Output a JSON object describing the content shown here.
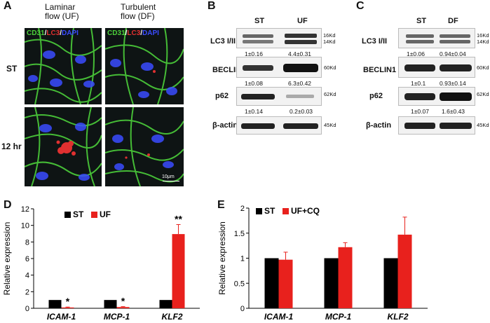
{
  "panelA": {
    "label": "A",
    "col1": "Laminar\nflow (UF)",
    "col2": "Turbulent\nflow (DF)",
    "row1": "ST",
    "row2": "12 hr",
    "stain": {
      "cd31": "CD31",
      "lc3": "LC3",
      "dapi": "DAPI",
      "sep": "/"
    },
    "scalebar": "10μm",
    "colors": {
      "cd31": "#4ccf3a",
      "lc3": "#e03030",
      "dapi": "#3a4cff"
    }
  },
  "panelB": {
    "label": "B",
    "lanes": [
      "ST",
      "UF"
    ],
    "rows": [
      {
        "name": "LC3 I/II",
        "kd": [
          "16Kd",
          "14Kd"
        ],
        "quant": [
          "1±0.16",
          "4.4±0.31"
        ]
      },
      {
        "name": "BECLIN1",
        "kd": [
          "60Kd"
        ],
        "quant": [
          "1±0.08",
          "6.3±0.42"
        ]
      },
      {
        "name": "p62",
        "kd": [
          "62Kd"
        ],
        "quant": [
          "1±0.14",
          "0.2±0.03"
        ]
      },
      {
        "name": "β-actin",
        "kd": [
          "45Kd"
        ],
        "quant": []
      }
    ]
  },
  "panelC": {
    "label": "C",
    "lanes": [
      "ST",
      "DF"
    ],
    "rows": [
      {
        "name": "LC3 I/II",
        "kd": [
          "16Kd",
          "14Kd"
        ],
        "quant": [
          "1±0.06",
          "0.94±0.04"
        ]
      },
      {
        "name": "BECLIN1",
        "kd": [
          "60Kd"
        ],
        "quant": [
          "1±0.1",
          "0.93±0.14"
        ]
      },
      {
        "name": "p62",
        "kd": [
          "62Kd"
        ],
        "quant": [
          "1±0.07",
          "1.6±0.43"
        ]
      },
      {
        "name": "β-actin",
        "kd": [
          "45Kd"
        ],
        "quant": []
      }
    ]
  },
  "chart_data": [
    {
      "panel": "D",
      "type": "bar",
      "categories": [
        "ICAM-1",
        "MCP-1",
        "KLF2"
      ],
      "series": [
        {
          "name": "ST",
          "values": [
            1,
            1,
            1
          ],
          "errors": [
            0,
            0,
            0
          ],
          "color": "#000000"
        },
        {
          "name": "UF",
          "values": [
            0.1,
            0.15,
            8.95
          ],
          "errors": [
            0.05,
            0.05,
            1.15
          ],
          "color": "#e8211d"
        }
      ],
      "annotations": [
        "*",
        "*",
        "**"
      ],
      "ylabel": "Relative expression",
      "ylim": [
        0,
        12
      ],
      "yticks": [
        "0",
        "2",
        "4",
        "6",
        "8",
        "10",
        "12"
      ],
      "legend": "top-left",
      "grid": false
    },
    {
      "panel": "E",
      "type": "bar",
      "categories": [
        "ICAM-1",
        "MCP-1",
        "KLF2"
      ],
      "series": [
        {
          "name": "ST",
          "values": [
            1,
            1,
            1
          ],
          "errors": [
            0,
            0,
            0
          ],
          "color": "#000000"
        },
        {
          "name": "UF+CQ",
          "values": [
            0.97,
            1.22,
            1.47
          ],
          "errors": [
            0.15,
            0.09,
            0.35
          ],
          "color": "#e8211d"
        }
      ],
      "ylabel": "Relative expression",
      "ylim": [
        0,
        2
      ],
      "yticks": [
        "0",
        "0.5",
        "1",
        "1.5",
        "2"
      ],
      "legend": "top-left",
      "grid": false
    }
  ]
}
